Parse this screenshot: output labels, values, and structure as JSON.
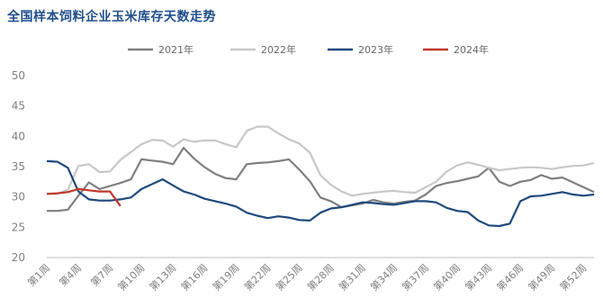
{
  "chart_data": {
    "type": "line",
    "title": "全国样本饲料企业玉米库存天数走势",
    "xlabel": "",
    "ylabel": "",
    "ylim": [
      20,
      50
    ],
    "yticks": [
      20,
      25,
      30,
      35,
      40,
      45,
      50
    ],
    "legend_position": "top",
    "grid": false,
    "x_tick_labels": [
      "第1周",
      "第4周",
      "第7周",
      "第10周",
      "第13周",
      "第16周",
      "第19周",
      "第22周",
      "第25周",
      "第28周",
      "第31周",
      "第34周",
      "第37周",
      "第40周",
      "第43周",
      "第46周",
      "第49周",
      "第52周"
    ],
    "x_tick_weeks": [
      1,
      4,
      7,
      10,
      13,
      16,
      19,
      22,
      25,
      28,
      31,
      34,
      37,
      40,
      43,
      46,
      49,
      52
    ],
    "x_range": [
      1,
      53
    ],
    "series": [
      {
        "name": "2021年",
        "color": "#7f7f7f",
        "x": [
          1,
          2,
          3,
          4,
          5,
          6,
          7,
          8,
          9,
          10,
          11,
          12,
          13,
          14,
          15,
          16,
          17,
          18,
          19,
          20,
          21,
          22,
          23,
          24,
          25,
          26,
          27,
          28,
          29,
          30,
          31,
          32,
          33,
          34,
          35,
          36,
          37,
          38,
          39,
          40,
          41,
          42,
          43,
          44,
          45,
          46,
          47,
          48,
          49,
          50,
          51,
          52,
          53
        ],
        "values": [
          27.7,
          27.7,
          27.9,
          30.2,
          32.4,
          31.3,
          31.8,
          32.3,
          32.9,
          36.2,
          36,
          35.8,
          35.4,
          38.1,
          36.3,
          34.9,
          33.8,
          33.1,
          32.9,
          35.4,
          35.6,
          35.7,
          35.9,
          36.2,
          34.5,
          32.6,
          29.9,
          29.3,
          28.3,
          28.6,
          28.9,
          29.5,
          29.1,
          28.9,
          29.2,
          29.4,
          30.4,
          31.8,
          32.3,
          32.6,
          33,
          33.4,
          34.8,
          32.5,
          31.8,
          32.5,
          32.8,
          33.6,
          33,
          33.2,
          32.4,
          31.6,
          30.8
        ]
      },
      {
        "name": "2022年",
        "color": "#c8c8c8",
        "x": [
          1,
          2,
          3,
          4,
          5,
          6,
          7,
          8,
          9,
          10,
          11,
          12,
          13,
          14,
          15,
          16,
          17,
          18,
          19,
          20,
          21,
          22,
          23,
          24,
          25,
          26,
          27,
          28,
          29,
          30,
          31,
          32,
          33,
          34,
          35,
          36,
          37,
          38,
          39,
          40,
          41,
          42,
          43,
          44,
          45,
          46,
          47,
          48,
          49,
          50,
          51,
          52,
          53
        ],
        "values": [
          30.5,
          30.5,
          31.2,
          35.1,
          35.4,
          34.1,
          34.2,
          36.1,
          37.4,
          38.7,
          39.4,
          39.3,
          38.3,
          39.5,
          39.1,
          39.3,
          39.3,
          38.7,
          38.2,
          40.9,
          41.6,
          41.6,
          40.5,
          39.5,
          38.8,
          37.3,
          33.6,
          32,
          30.9,
          30.2,
          30.5,
          30.7,
          30.9,
          31,
          30.8,
          30.7,
          31.6,
          32.5,
          34.2,
          35.2,
          35.7,
          35.3,
          34.8,
          34.4,
          34.6,
          34.8,
          34.9,
          34.8,
          34.6,
          34.9,
          35.1,
          35.2,
          35.6
        ]
      },
      {
        "name": "2023年",
        "color": "#1f497d",
        "x": [
          1,
          2,
          3,
          4,
          5,
          6,
          7,
          8,
          9,
          10,
          11,
          12,
          13,
          14,
          15,
          16,
          17,
          18,
          19,
          20,
          21,
          22,
          23,
          24,
          25,
          26,
          27,
          28,
          29,
          30,
          31,
          32,
          33,
          34,
          35,
          36,
          37,
          38,
          39,
          40,
          41,
          42,
          43,
          44,
          45,
          46,
          47,
          48,
          49,
          50,
          51,
          52,
          53
        ],
        "values": [
          35.9,
          35.8,
          34.8,
          30.9,
          29.6,
          29.4,
          29.4,
          29.6,
          29.9,
          31.3,
          32.1,
          32.9,
          31.9,
          30.9,
          30.4,
          29.7,
          29.3,
          28.9,
          28.4,
          27.4,
          26.9,
          26.5,
          26.8,
          26.6,
          26.2,
          26.1,
          27.4,
          28.1,
          28.3,
          28.7,
          29.1,
          29,
          28.8,
          28.7,
          29,
          29.3,
          29.3,
          29.1,
          28.2,
          27.7,
          27.5,
          26.1,
          25.3,
          25.2,
          25.6,
          29.3,
          30.1,
          30.2,
          30.5,
          30.8,
          30.4,
          30.2,
          30.4
        ]
      },
      {
        "name": "2024年",
        "color": "#c0392b",
        "x": [
          1,
          2,
          3,
          4,
          5,
          6,
          7,
          8
        ],
        "values": [
          30.5,
          30.6,
          30.8,
          31.3,
          31.1,
          30.9,
          30.9,
          28.5
        ]
      }
    ]
  }
}
